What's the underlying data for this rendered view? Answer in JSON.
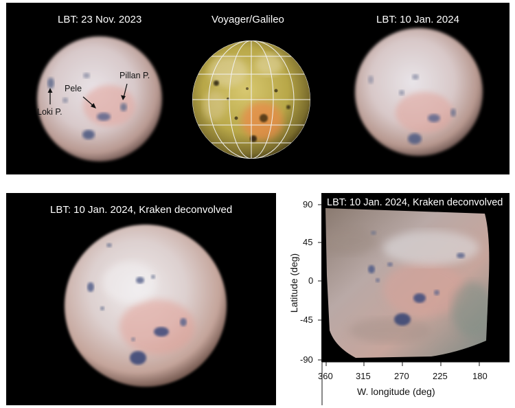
{
  "panels": {
    "top_left": {
      "title": "LBT: 23 Nov. 2023",
      "annotations": [
        "Pillan P.",
        "Pele",
        "Loki P."
      ]
    },
    "top_center": {
      "title": "Voyager/Galileo"
    },
    "top_right": {
      "title": "LBT: 10 Jan. 2024"
    },
    "bottom_left": {
      "title": "LBT: 10 Jan. 2024, Kraken deconvolved"
    },
    "bottom_right": {
      "title": "LBT: 10 Jan. 2024, Kraken deconvolved",
      "y_axis": {
        "label": "Latitude (deg)",
        "ticks": [
          "90",
          "45",
          "0",
          "-45",
          "-90"
        ]
      },
      "x_axis": {
        "label": "W. longitude (deg)",
        "ticks": [
          "360",
          "315",
          "270",
          "225",
          "180"
        ]
      }
    }
  },
  "colors": {
    "background": "#000000",
    "text": "#ffffff",
    "axis_text": "#111111"
  }
}
